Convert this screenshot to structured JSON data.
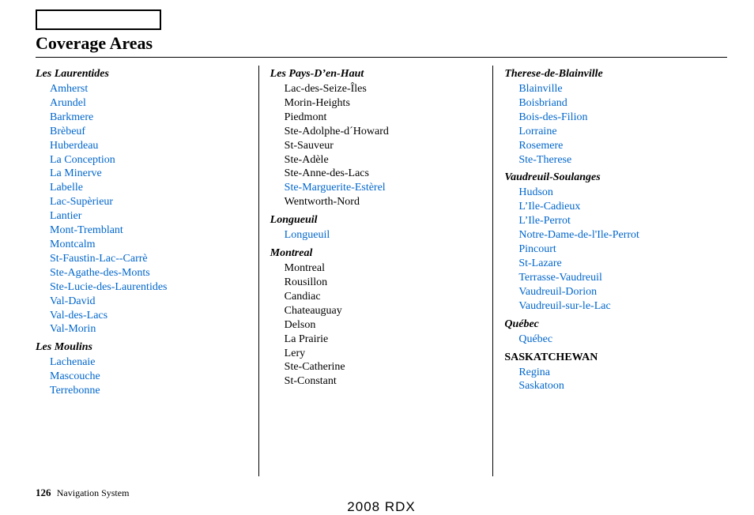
{
  "title": "Coverage Areas",
  "link_color": "#0066cc",
  "text_color": "#000000",
  "columns": [
    {
      "sections": [
        {
          "header": "Les Laurentides",
          "items": [
            {
              "label": "Amherst",
              "link": true
            },
            {
              "label": "Arundel",
              "link": true
            },
            {
              "label": "Barkmere",
              "link": true
            },
            {
              "label": "Brèbeuf",
              "link": true
            },
            {
              "label": "Huberdeau",
              "link": true
            },
            {
              "label": "La Conception",
              "link": true
            },
            {
              "label": "La Minerve",
              "link": true
            },
            {
              "label": "Labelle",
              "link": true
            },
            {
              "label": "Lac-Supèrieur",
              "link": true
            },
            {
              "label": "Lantier",
              "link": true
            },
            {
              "label": "Mont-Tremblant",
              "link": true
            },
            {
              "label": "Montcalm",
              "link": true
            },
            {
              "label": "St-Faustin-Lac--Carrè",
              "link": true
            },
            {
              "label": "Ste-Agathe-des-Monts",
              "link": true
            },
            {
              "label": "Ste-Lucie-des-Laurentides",
              "link": true
            },
            {
              "label": "Val-David",
              "link": true
            },
            {
              "label": "Val-des-Lacs",
              "link": true
            },
            {
              "label": "Val-Morin",
              "link": true
            }
          ]
        },
        {
          "header": "Les Moulins",
          "items": [
            {
              "label": "Lachenaie",
              "link": true
            },
            {
              "label": "Mascouche",
              "link": true
            },
            {
              "label": "Terrebonne",
              "link": true
            }
          ]
        }
      ]
    },
    {
      "sections": [
        {
          "header": "Les Pays-D’en-Haut",
          "items": [
            {
              "label": "Lac-des-Seize-Îles",
              "link": false
            },
            {
              "label": "Morin-Heights",
              "link": false
            },
            {
              "label": "Piedmont",
              "link": false
            },
            {
              "label": "Ste-Adolphe-d´Howard",
              "link": false
            },
            {
              "label": "St-Sauveur",
              "link": false
            },
            {
              "label": "Ste-Adèle",
              "link": false
            },
            {
              "label": "Ste-Anne-des-Lacs",
              "link": false
            },
            {
              "label": "Ste-Marguerite-Estèrel",
              "link": true
            },
            {
              "label": "Wentworth-Nord",
              "link": false
            }
          ]
        },
        {
          "header": "Longueuil",
          "items": [
            {
              "label": "Longueuil",
              "link": true
            }
          ]
        },
        {
          "header": "Montreal",
          "items": [
            {
              "label": "Montreal",
              "link": false
            },
            {
              "label": "Rousillon",
              "link": false
            },
            {
              "label": "Candiac",
              "link": false
            },
            {
              "label": "Chateauguay",
              "link": false
            },
            {
              "label": "Delson",
              "link": false
            },
            {
              "label": "La Prairie",
              "link": false
            },
            {
              "label": "Lery",
              "link": false
            },
            {
              "label": "Ste-Catherine",
              "link": false
            },
            {
              "label": "St-Constant",
              "link": false
            }
          ]
        }
      ]
    },
    {
      "sections": [
        {
          "header": "Therese-de-Blainville",
          "items": [
            {
              "label": "Blainville",
              "link": true
            },
            {
              "label": "Boisbriand",
              "link": true
            },
            {
              "label": "Bois-des-Filion",
              "link": true
            },
            {
              "label": "Lorraine",
              "link": true
            },
            {
              "label": "Rosemere",
              "link": true
            },
            {
              "label": "Ste-Therese",
              "link": true
            }
          ]
        },
        {
          "header": "Vaudreuil-Soulanges",
          "items": [
            {
              "label": "Hudson",
              "link": true
            },
            {
              "label": "L’Ile-Cadieux",
              "link": true
            },
            {
              "label": "L’Ile-Perrot",
              "link": true
            },
            {
              "label": "Notre-Dame-de-l'Ile-Perrot",
              "link": true
            },
            {
              "label": "Pincourt",
              "link": true
            },
            {
              "label": "St-Lazare",
              "link": true
            },
            {
              "label": "Terrasse-Vaudreuil",
              "link": true
            },
            {
              "label": "Vaudreuil-Dorion",
              "link": true
            },
            {
              "label": "Vaudreuil-sur-le-Lac",
              "link": true
            }
          ]
        },
        {
          "header": "Québec",
          "items": [
            {
              "label": "Québec",
              "link": true
            }
          ]
        },
        {
          "header": "SASKATCHEWAN",
          "province": true,
          "items": [
            {
              "label": "Regina",
              "link": true
            },
            {
              "label": "Saskatoon",
              "link": true
            }
          ]
        }
      ]
    }
  ],
  "footer": {
    "page_number": "126",
    "label": "Navigation System",
    "center": "2008  RDX"
  }
}
